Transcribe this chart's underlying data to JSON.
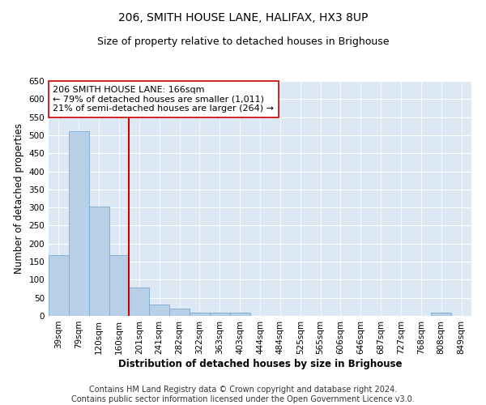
{
  "title": "206, SMITH HOUSE LANE, HALIFAX, HX3 8UP",
  "subtitle": "Size of property relative to detached houses in Brighouse",
  "xlabel": "Distribution of detached houses by size in Brighouse",
  "ylabel": "Number of detached properties",
  "categories": [
    "39sqm",
    "79sqm",
    "120sqm",
    "160sqm",
    "201sqm",
    "241sqm",
    "282sqm",
    "322sqm",
    "363sqm",
    "403sqm",
    "444sqm",
    "484sqm",
    "525sqm",
    "565sqm",
    "606sqm",
    "646sqm",
    "687sqm",
    "727sqm",
    "768sqm",
    "808sqm",
    "849sqm"
  ],
  "bar_heights": [
    168,
    510,
    302,
    168,
    78,
    32,
    20,
    8,
    8,
    8,
    0,
    0,
    0,
    0,
    0,
    0,
    0,
    0,
    0,
    8,
    0
  ],
  "bar_color": "#b8cfe8",
  "bar_edge_color": "#7aaad0",
  "vline_x": 3.5,
  "vline_color": "#cc0000",
  "annotation_text": "206 SMITH HOUSE LANE: 166sqm\n← 79% of detached houses are smaller (1,011)\n21% of semi-detached houses are larger (264) →",
  "ylim": [
    0,
    650
  ],
  "yticks": [
    0,
    50,
    100,
    150,
    200,
    250,
    300,
    350,
    400,
    450,
    500,
    550,
    600,
    650
  ],
  "bg_color": "#dde8f5",
  "footer_line1": "Contains HM Land Registry data © Crown copyright and database right 2024.",
  "footer_line2": "Contains public sector information licensed under the Open Government Licence v3.0.",
  "title_fontsize": 10,
  "subtitle_fontsize": 9,
  "axis_label_fontsize": 8.5,
  "tick_fontsize": 7.5,
  "annotation_fontsize": 8,
  "footer_fontsize": 7
}
